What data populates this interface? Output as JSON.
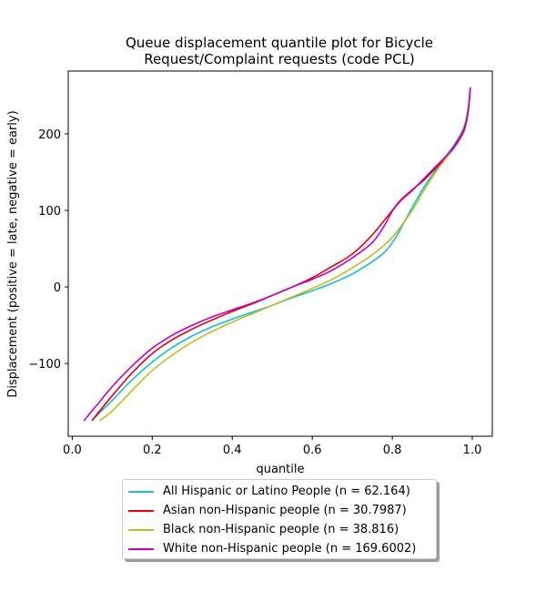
{
  "chart_data": {
    "type": "line",
    "title_line1": "Queue displacement quantile plot for Bicycle",
    "title_line2": "Request/Complaint  requests (code PCL)",
    "xlabel": "quantile",
    "ylabel": "Displacement (positive = late, negative = early)",
    "xlim": [
      -0.01,
      1.05
    ],
    "ylim": [
      -195,
      282
    ],
    "xticks": [
      0.0,
      0.2,
      0.4,
      0.6,
      0.8,
      1.0
    ],
    "xtick_labels": [
      "0.0",
      "0.2",
      "0.4",
      "0.6",
      "0.8",
      "1.0"
    ],
    "yticks": [
      -100,
      0,
      100,
      200
    ],
    "ytick_labels": [
      "−100",
      "0",
      "100",
      "200"
    ],
    "grid": false,
    "legend_position": "below",
    "series": [
      {
        "name": "All Hispanic or Latino People (n = 62.164)",
        "color": "#17becf",
        "x": [
          0.05,
          0.1,
          0.15,
          0.2,
          0.25,
          0.3,
          0.35,
          0.4,
          0.45,
          0.5,
          0.55,
          0.6,
          0.65,
          0.7,
          0.75,
          0.78,
          0.8,
          0.82,
          0.85,
          0.88,
          0.91,
          0.94,
          0.96,
          0.98,
          0.99,
          0.995
        ],
        "values": [
          -174,
          -148,
          -121,
          -98,
          -79,
          -64,
          -52,
          -42,
          -33,
          -24,
          -14,
          -5,
          5,
          17,
          33,
          45,
          58,
          75,
          104,
          131,
          154,
          175,
          190,
          210,
          235,
          258
        ]
      },
      {
        "name": "Asian non-Hispanic people (n = 30.7987)",
        "color": "#e8000b",
        "x": [
          0.05,
          0.1,
          0.15,
          0.2,
          0.25,
          0.3,
          0.35,
          0.4,
          0.45,
          0.5,
          0.55,
          0.6,
          0.65,
          0.7,
          0.75,
          0.8,
          0.82,
          0.85,
          0.88,
          0.91,
          0.94,
          0.96,
          0.98,
          0.99,
          0.995
        ],
        "values": [
          -174,
          -142,
          -112,
          -87,
          -69,
          -55,
          -43,
          -32,
          -22,
          -11,
          0,
          12,
          27,
          43,
          68,
          100,
          113,
          127,
          140,
          156,
          172,
          186,
          205,
          230,
          260
        ]
      },
      {
        "name": "Black non-Hispanic people (n = 38.816)",
        "color": "#bcbd22",
        "x": [
          0.07,
          0.1,
          0.15,
          0.2,
          0.25,
          0.3,
          0.35,
          0.4,
          0.45,
          0.5,
          0.55,
          0.6,
          0.65,
          0.7,
          0.75,
          0.8,
          0.85,
          0.88,
          0.91,
          0.94,
          0.96,
          0.98,
          0.99,
          0.995
        ],
        "values": [
          -174,
          -162,
          -135,
          -109,
          -89,
          -72,
          -58,
          -46,
          -35,
          -24,
          -13,
          -2,
          10,
          25,
          42,
          65,
          100,
          127,
          151,
          172,
          188,
          208,
          233,
          260
        ]
      },
      {
        "name": "White non-Hispanic people (n = 169.6002)",
        "color": "#c000c0",
        "x": [
          0.03,
          0.07,
          0.1,
          0.15,
          0.2,
          0.25,
          0.3,
          0.35,
          0.4,
          0.45,
          0.5,
          0.55,
          0.6,
          0.65,
          0.7,
          0.75,
          0.78,
          0.8,
          0.82,
          0.85,
          0.88,
          0.91,
          0.94,
          0.96,
          0.98,
          0.99,
          0.995
        ],
        "values": [
          -174,
          -149,
          -130,
          -103,
          -80,
          -63,
          -50,
          -39,
          -30,
          -21,
          -11,
          0,
          10,
          22,
          38,
          58,
          80,
          99,
          112,
          126,
          142,
          158,
          174,
          188,
          207,
          232,
          260
        ]
      }
    ]
  }
}
